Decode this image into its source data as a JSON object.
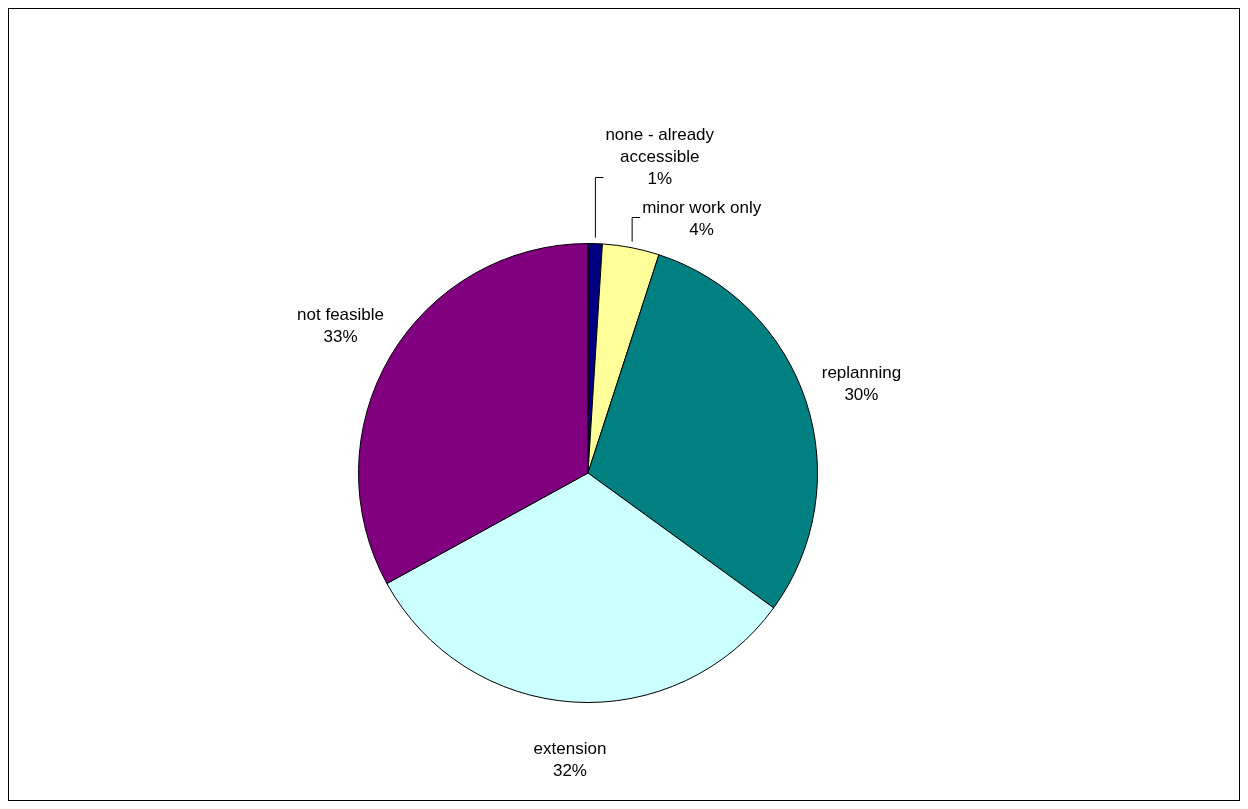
{
  "chart_data": {
    "type": "pie",
    "categories": [
      "none - already accessible",
      "minor work only",
      "replanning",
      "extension",
      "not feasible"
    ],
    "values": [
      1,
      4,
      30,
      32,
      33
    ],
    "colors": [
      "#000080",
      "#ffff99",
      "#008080",
      "#ccffff",
      "#800080"
    ],
    "value_labels": [
      "1%",
      "4%",
      "30%",
      "32%",
      "33%"
    ],
    "legend": false
  }
}
